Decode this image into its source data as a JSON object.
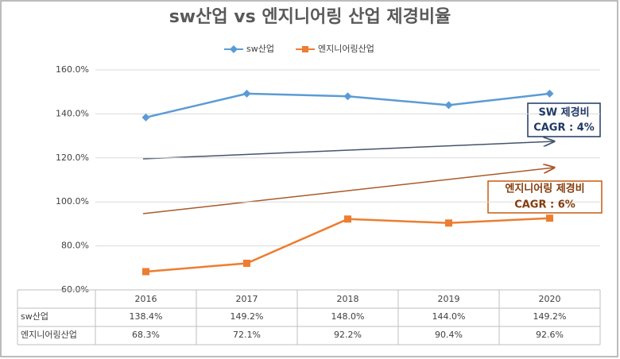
{
  "chart_data": {
    "type": "line",
    "title": "sw산업 vs 엔지니어링 산업 제경비율",
    "categories": [
      "2016",
      "2017",
      "2018",
      "2019",
      "2020"
    ],
    "series": [
      {
        "name": "sw산업",
        "color": "#5b9bd5",
        "marker": "diamond",
        "values": [
          138.4,
          149.2,
          148.0,
          144.0,
          149.2
        ],
        "value_labels": [
          "138.4%",
          "149.2%",
          "148.0%",
          "144.0%",
          "149.2%"
        ]
      },
      {
        "name": "엔지니어링산업",
        "color": "#ed7d31",
        "marker": "square",
        "values": [
          68.3,
          72.1,
          92.2,
          90.4,
          92.6
        ],
        "value_labels": [
          "68.3%",
          "72.1%",
          "92.2%",
          "90.4%",
          "92.6%"
        ]
      }
    ],
    "ylim": [
      60,
      160
    ],
    "yticks": [
      {
        "value": 60,
        "label": "60.0%"
      },
      {
        "value": 80,
        "label": "80.0%"
      },
      {
        "value": 100,
        "label": "100.0%"
      },
      {
        "value": 120,
        "label": "120.0%"
      },
      {
        "value": 140,
        "label": "140.0%"
      },
      {
        "value": 160,
        "label": "160.0%"
      }
    ],
    "grid": true,
    "annotations": [
      {
        "lines": [
          "SW 제경비",
          "CAGR : 4%"
        ],
        "color": "#1f3864"
      },
      {
        "lines": [
          "엔지니어링 제경비",
          "CAGR : 6%"
        ],
        "color": "#843c0c"
      }
    ]
  }
}
